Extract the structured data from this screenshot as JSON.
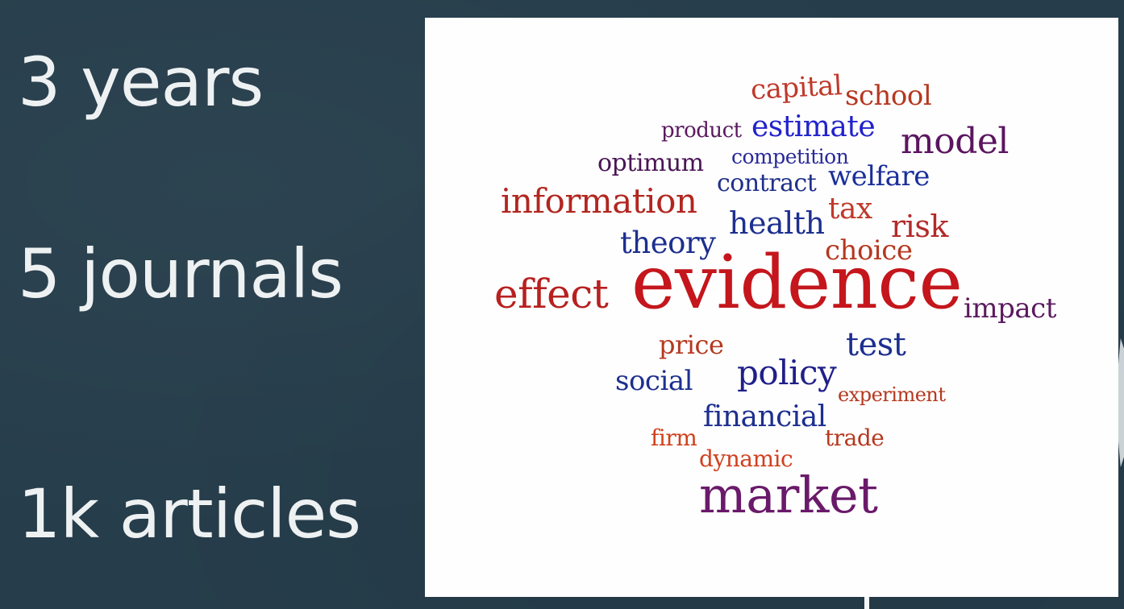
{
  "stats": {
    "years": "3 years",
    "journals": "5 journals",
    "articles": "1k articles"
  },
  "word_cloud": {
    "words": [
      {
        "id": "capital",
        "text": "capital",
        "color": "#c0392b"
      },
      {
        "id": "school",
        "text": "school",
        "color": "#b5381f"
      },
      {
        "id": "product",
        "text": "product",
        "color": "#5a1a5e"
      },
      {
        "id": "estimate",
        "text": "estimate",
        "color": "#2222cc"
      },
      {
        "id": "model",
        "text": "model",
        "color": "#5b1560"
      },
      {
        "id": "optimum",
        "text": "optimum",
        "color": "#4a1555"
      },
      {
        "id": "competition",
        "text": "competition",
        "color": "#2a2a9a"
      },
      {
        "id": "contract",
        "text": "contract",
        "color": "#20308a"
      },
      {
        "id": "welfare",
        "text": "welfare",
        "color": "#1a2f9a"
      },
      {
        "id": "information",
        "text": "information",
        "color": "#b2261f"
      },
      {
        "id": "tax",
        "text": "tax",
        "color": "#c0392b"
      },
      {
        "id": "health",
        "text": "health",
        "color": "#1d2f8f"
      },
      {
        "id": "risk",
        "text": "risk",
        "color": "#b32a2a"
      },
      {
        "id": "theory",
        "text": "theory",
        "color": "#1d2f8f"
      },
      {
        "id": "choice",
        "text": "choice",
        "color": "#b5381f"
      },
      {
        "id": "effect",
        "text": "effect",
        "color": "#b82020"
      },
      {
        "id": "evidence",
        "text": "evidence",
        "color": "#c4161c"
      },
      {
        "id": "impact",
        "text": "impact",
        "color": "#5a1a5e"
      },
      {
        "id": "price",
        "text": "price",
        "color": "#b5381f"
      },
      {
        "id": "test",
        "text": "test",
        "color": "#1d2f8f"
      },
      {
        "id": "social",
        "text": "social",
        "color": "#1d2f8f"
      },
      {
        "id": "policy",
        "text": "policy",
        "color": "#20208a"
      },
      {
        "id": "experiment",
        "text": "experiment",
        "color": "#b5381f"
      },
      {
        "id": "financial",
        "text": "financial",
        "color": "#1d2f8f"
      },
      {
        "id": "firm",
        "text": "firm",
        "color": "#d0401a"
      },
      {
        "id": "trade",
        "text": "trade",
        "color": "#b5381f"
      },
      {
        "id": "dynamic",
        "text": "dynamic",
        "color": "#d04020"
      },
      {
        "id": "market",
        "text": "market",
        "color": "#6a1a6a"
      }
    ]
  }
}
